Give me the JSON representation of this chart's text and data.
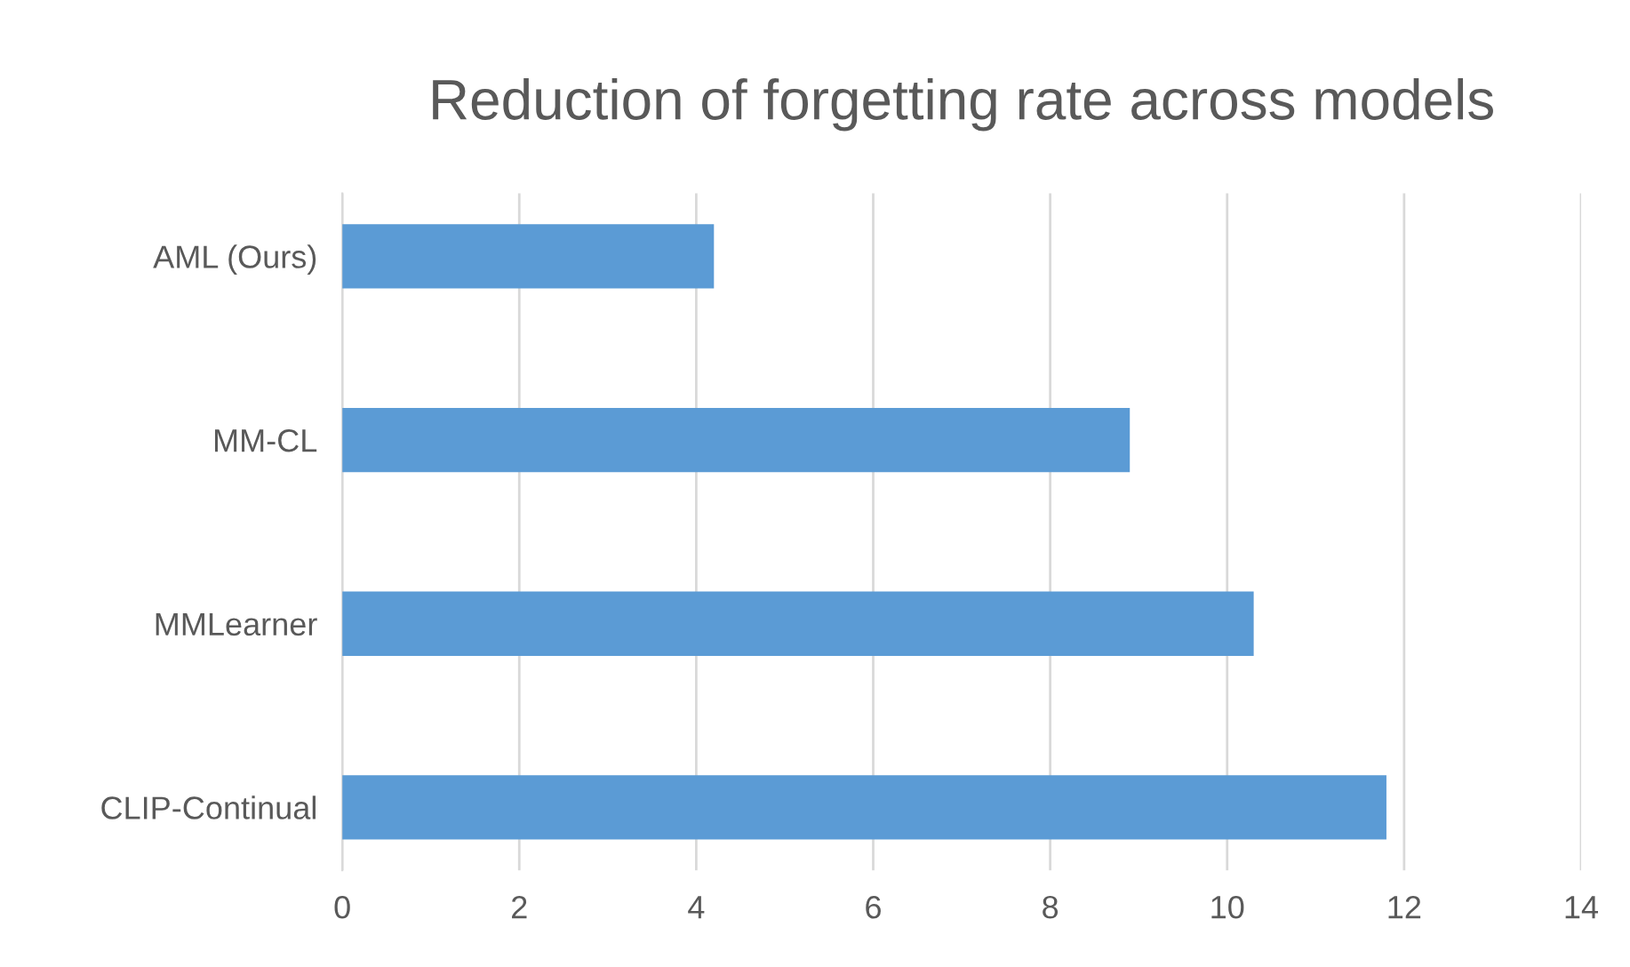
{
  "chart_data": {
    "type": "bar",
    "orientation": "horizontal",
    "title": "Reduction of forgetting rate across models",
    "categories": [
      "AML (Ours)",
      "MM-CL",
      "MMLearner",
      "CLIP-Continual"
    ],
    "values": [
      4.2,
      8.9,
      10.3,
      11.8
    ],
    "color": "#5b9bd5",
    "xlim": [
      0,
      14
    ],
    "xticks": [
      0,
      2,
      4,
      6,
      8,
      10,
      12,
      14
    ],
    "grid": "x",
    "legend": false
  }
}
